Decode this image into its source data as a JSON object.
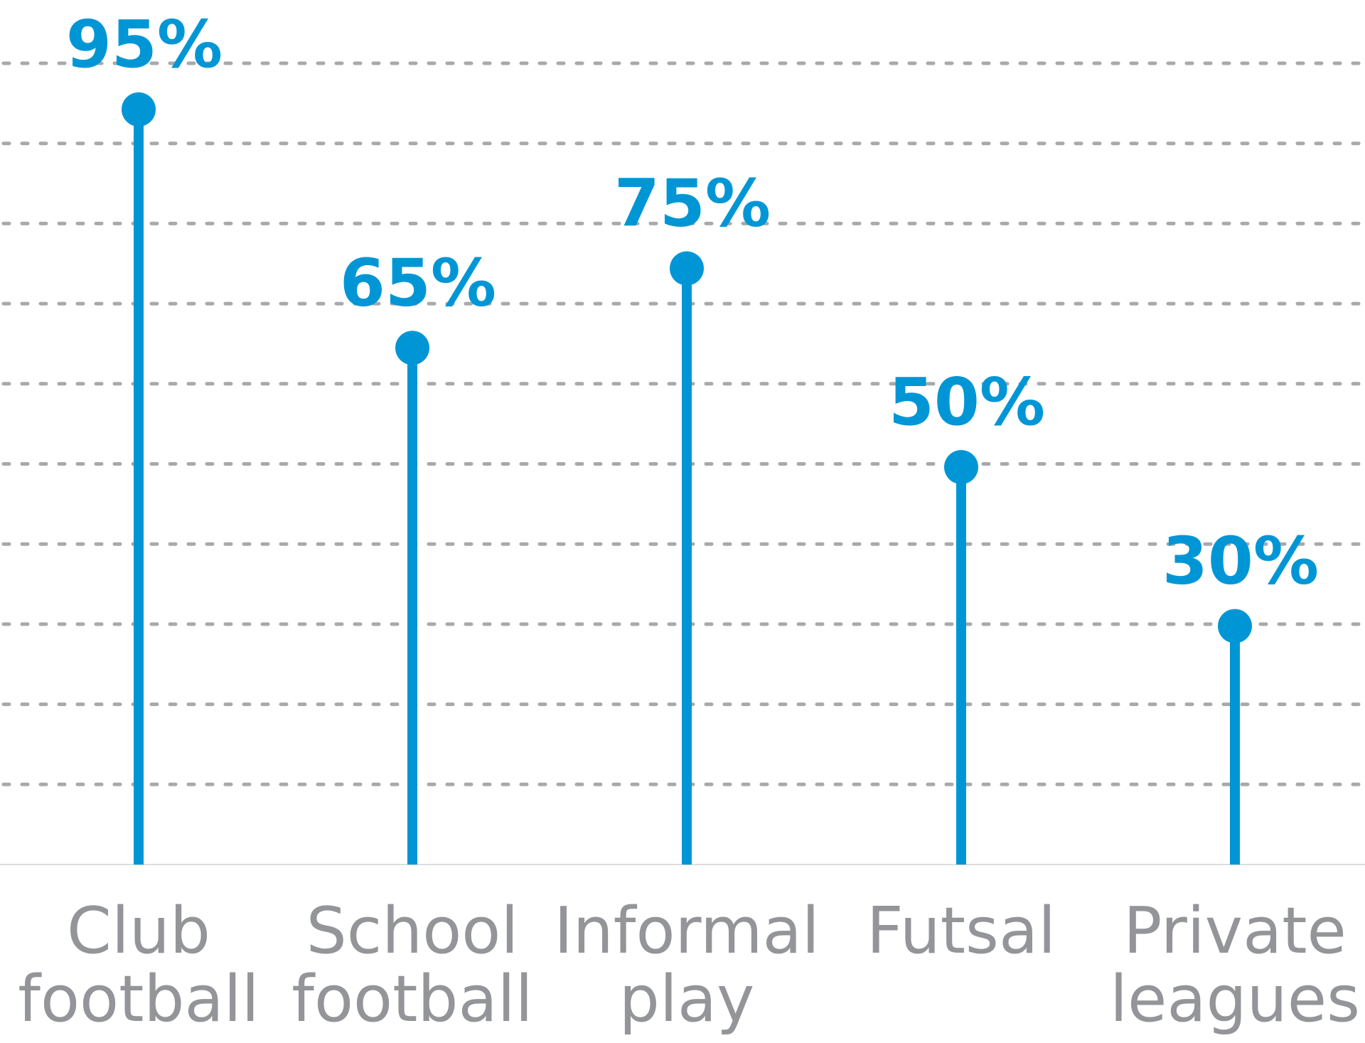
{
  "chart_data": {
    "type": "lollipop",
    "categories": [
      [
        "Club",
        "football"
      ],
      [
        "School",
        "football"
      ],
      [
        "Informal",
        "play"
      ],
      [
        "Futsal"
      ],
      [
        "Private",
        "leagues"
      ]
    ],
    "values": [
      95,
      65,
      75,
      50,
      30
    ],
    "value_labels": [
      "95%",
      "65%",
      "75%",
      "50%",
      "30%"
    ],
    "title": "",
    "xlabel": "",
    "ylabel": "",
    "ylim": [
      0,
      100
    ],
    "grid": true,
    "grid_step": 10,
    "colors": {
      "series": "#0096d6",
      "grid": "#a7a9ac",
      "axis_labels": "#939598"
    }
  }
}
